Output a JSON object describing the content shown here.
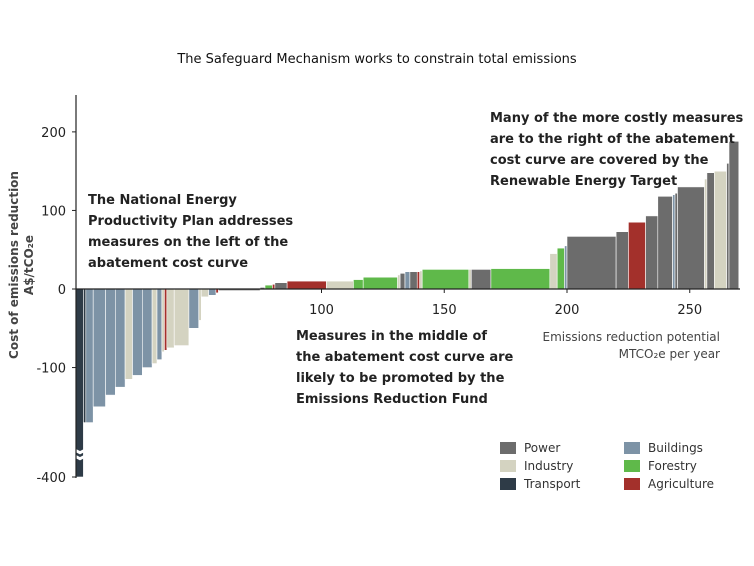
{
  "chart_data": {
    "type": "bar",
    "title": "The Safeguard Mechanism works to constrain total emissions",
    "ylabel": [
      "Cost of emissions reduction",
      "A$/tCO₂e"
    ],
    "xlabel": [
      "Emissions reduction potential",
      "MTCO₂e per year"
    ],
    "y_ticks": [
      200,
      100,
      0,
      -100,
      -400
    ],
    "x_ticks": [
      100,
      150,
      200,
      250
    ],
    "ylim": [
      -400,
      240
    ],
    "xlim": [
      0,
      270
    ],
    "y_axis_break": true,
    "colors": {
      "Power": "#6c6c6c",
      "Industry": "#d4d3c1",
      "Transport": "#2e3b47",
      "Buildings": "#7d93a6",
      "Forestry": "#5fb94a",
      "Agriculture": "#a3302b"
    },
    "segments": [
      {
        "sector": "Transport",
        "x0": 0,
        "x1": 3,
        "y": -400
      },
      {
        "sector": "Transport",
        "x0": 3,
        "x1": 4,
        "y": -170
      },
      {
        "sector": "Buildings",
        "x0": 4,
        "x1": 7,
        "y": -170
      },
      {
        "sector": "Buildings",
        "x0": 7,
        "x1": 12,
        "y": -150
      },
      {
        "sector": "Buildings",
        "x0": 12,
        "x1": 16,
        "y": -135
      },
      {
        "sector": "Buildings",
        "x0": 16,
        "x1": 20,
        "y": -125
      },
      {
        "sector": "Industry",
        "x0": 20,
        "x1": 23,
        "y": -115
      },
      {
        "sector": "Buildings",
        "x0": 23,
        "x1": 27,
        "y": -110
      },
      {
        "sector": "Buildings",
        "x0": 27,
        "x1": 31,
        "y": -100
      },
      {
        "sector": "Industry",
        "x0": 31,
        "x1": 33,
        "y": -95
      },
      {
        "sector": "Buildings",
        "x0": 33,
        "x1": 35,
        "y": -90
      },
      {
        "sector": "Industry",
        "x0": 35,
        "x1": 36,
        "y": -80
      },
      {
        "sector": "Agriculture",
        "x0": 36,
        "x1": 37,
        "y": -78
      },
      {
        "sector": "Industry",
        "x0": 37,
        "x1": 40,
        "y": -75
      },
      {
        "sector": "Industry",
        "x0": 40,
        "x1": 46,
        "y": -72
      },
      {
        "sector": "Buildings",
        "x0": 46,
        "x1": 50,
        "y": -50
      },
      {
        "sector": "Industry",
        "x0": 50,
        "x1": 51,
        "y": -40
      },
      {
        "sector": "Industry",
        "x0": 51,
        "x1": 54,
        "y": -10
      },
      {
        "sector": "Buildings",
        "x0": 54,
        "x1": 57,
        "y": -8
      },
      {
        "sector": "Agriculture",
        "x0": 57,
        "x1": 58,
        "y": -5
      },
      {
        "sector": "Power",
        "x0": 58,
        "x1": 75,
        "y": -2
      },
      {
        "sector": "Power",
        "x0": 75,
        "x1": 77,
        "y": 2
      },
      {
        "sector": "Forestry",
        "x0": 77,
        "x1": 80,
        "y": 5
      },
      {
        "sector": "Agriculture",
        "x0": 80,
        "x1": 81,
        "y": 6
      },
      {
        "sector": "Power",
        "x0": 81,
        "x1": 86,
        "y": 8
      },
      {
        "sector": "Agriculture",
        "x0": 86,
        "x1": 102,
        "y": 10
      },
      {
        "sector": "Industry",
        "x0": 102,
        "x1": 113,
        "y": 10
      },
      {
        "sector": "Forestry",
        "x0": 113,
        "x1": 117,
        "y": 12
      },
      {
        "sector": "Forestry",
        "x0": 117,
        "x1": 131,
        "y": 15
      },
      {
        "sector": "Industry",
        "x0": 131,
        "x1": 132,
        "y": 18
      },
      {
        "sector": "Power",
        "x0": 132,
        "x1": 134,
        "y": 20
      },
      {
        "sector": "Buildings",
        "x0": 134,
        "x1": 136,
        "y": 22
      },
      {
        "sector": "Power",
        "x0": 136,
        "x1": 139,
        "y": 22
      },
      {
        "sector": "Agriculture",
        "x0": 139,
        "x1": 140,
        "y": 22
      },
      {
        "sector": "Industry",
        "x0": 140,
        "x1": 141,
        "y": 23
      },
      {
        "sector": "Forestry",
        "x0": 141,
        "x1": 160,
        "y": 25
      },
      {
        "sector": "Industry",
        "x0": 160,
        "x1": 161,
        "y": 25
      },
      {
        "sector": "Power",
        "x0": 161,
        "x1": 169,
        "y": 25
      },
      {
        "sector": "Forestry",
        "x0": 169,
        "x1": 193,
        "y": 26
      },
      {
        "sector": "Industry",
        "x0": 193,
        "x1": 196,
        "y": 45
      },
      {
        "sector": "Forestry",
        "x0": 196,
        "x1": 199,
        "y": 52
      },
      {
        "sector": "Buildings",
        "x0": 199,
        "x1": 200,
        "y": 55
      },
      {
        "sector": "Power",
        "x0": 200,
        "x1": 220,
        "y": 67
      },
      {
        "sector": "Power",
        "x0": 220,
        "x1": 225,
        "y": 73
      },
      {
        "sector": "Agriculture",
        "x0": 225,
        "x1": 232,
        "y": 85
      },
      {
        "sector": "Power",
        "x0": 232,
        "x1": 237,
        "y": 93
      },
      {
        "sector": "Power",
        "x0": 237,
        "x1": 243,
        "y": 118
      },
      {
        "sector": "Buildings",
        "x0": 243,
        "x1": 244,
        "y": 120
      },
      {
        "sector": "Power",
        "x0": 244,
        "x1": 245,
        "y": 122
      },
      {
        "sector": "Power",
        "x0": 245,
        "x1": 256,
        "y": 130
      },
      {
        "sector": "Industry",
        "x0": 256,
        "x1": 257,
        "y": 140
      },
      {
        "sector": "Power",
        "x0": 257,
        "x1": 260,
        "y": 148
      },
      {
        "sector": "Industry",
        "x0": 260,
        "x1": 265,
        "y": 150
      },
      {
        "sector": "Power",
        "x0": 265,
        "x1": 266,
        "y": 160
      },
      {
        "sector": "Power",
        "x0": 266,
        "x1": 270,
        "y": 188
      }
    ],
    "annotations": {
      "left": [
        "The National Energy",
        "Productivity Plan addresses",
        "measures on the left of the",
        "abatement cost curve"
      ],
      "middle": [
        "Measures in the middle of",
        "the abatement cost curve are",
        "likely to be promoted by the",
        "Emissions Reduction Fund"
      ],
      "right": [
        "Many of the more costly measures",
        "are to the right of the abatement",
        "cost curve are covered by the",
        "Renewable Energy Target"
      ]
    },
    "legend": {
      "position": "bottom-right",
      "entries": [
        "Power",
        "Buildings",
        "Industry",
        "Forestry",
        "Transport",
        "Agriculture"
      ]
    }
  }
}
